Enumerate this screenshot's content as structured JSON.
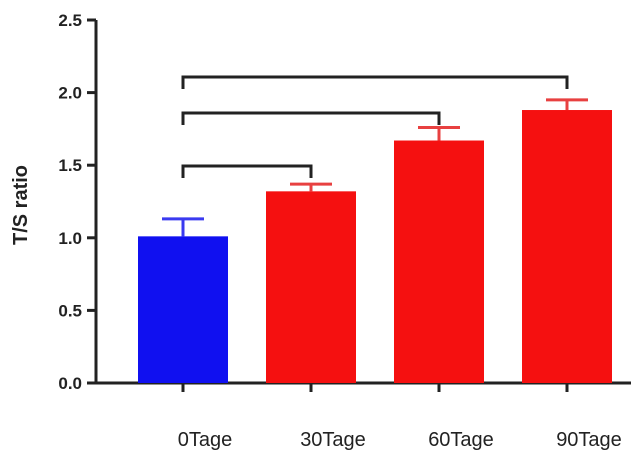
{
  "chart_data": {
    "type": "bar",
    "title": "",
    "xlabel": "",
    "ylabel": "T/S ratio",
    "ylim": [
      0,
      2.5
    ],
    "yticks": [
      "0.0",
      "0.5",
      "1.0",
      "1.5",
      "2.0",
      "2.5"
    ],
    "categories": [
      "0Tage",
      "30Tage",
      "60Tage",
      "90Tage"
    ],
    "values": [
      1.01,
      1.32,
      1.67,
      1.88
    ],
    "errors": [
      0.12,
      0.05,
      0.09,
      0.07
    ],
    "bar_colors": [
      "#1010f0",
      "#f51010",
      "#f51010",
      "#f51010"
    ],
    "error_colors": [
      "#3a3af0",
      "#e84040",
      "#e84040",
      "#e84040"
    ],
    "comparisons": [
      {
        "from": "0Tage",
        "to": "30Tage"
      },
      {
        "from": "0Tage",
        "to": "60Tage"
      },
      {
        "from": "0Tage",
        "to": "90Tage"
      }
    ],
    "grid": false,
    "legend": "none"
  }
}
